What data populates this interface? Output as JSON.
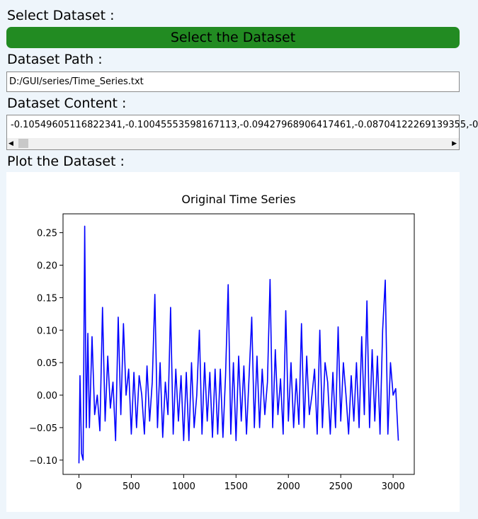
{
  "select_label": "Select Dataset :",
  "button": "Select the Dataset",
  "path_label": "Dataset Path :",
  "path_value": "D:/GUI/series/Time_Series.txt",
  "content_label": "Dataset Content :",
  "content_value": "-0.10549605116822341,-0.10045553598167113,-0.09427968906417461,-0.08704122269139355,-0",
  "plot_label": "Plot the Dataset :",
  "chart_data": {
    "type": "line",
    "title": "Original Time Series",
    "x": [
      0,
      10,
      25,
      40,
      55,
      70,
      85,
      100,
      125,
      150,
      175,
      200,
      225,
      250,
      275,
      300,
      325,
      350,
      375,
      400,
      425,
      450,
      475,
      500,
      525,
      550,
      575,
      600,
      625,
      650,
      675,
      700,
      725,
      750,
      775,
      800,
      825,
      850,
      875,
      900,
      925,
      950,
      975,
      1000,
      1025,
      1050,
      1075,
      1100,
      1125,
      1150,
      1175,
      1200,
      1225,
      1250,
      1275,
      1300,
      1325,
      1350,
      1375,
      1400,
      1425,
      1450,
      1475,
      1500,
      1525,
      1550,
      1575,
      1600,
      1625,
      1650,
      1675,
      1700,
      1725,
      1750,
      1775,
      1800,
      1825,
      1850,
      1875,
      1900,
      1925,
      1950,
      1975,
      2000,
      2025,
      2050,
      2075,
      2100,
      2125,
      2150,
      2175,
      2200,
      2225,
      2250,
      2275,
      2300,
      2325,
      2350,
      2375,
      2400,
      2425,
      2450,
      2475,
      2500,
      2525,
      2550,
      2575,
      2600,
      2625,
      2650,
      2675,
      2700,
      2725,
      2750,
      2775,
      2800,
      2825,
      2850,
      2875,
      2900,
      2925,
      2950,
      2975,
      3000,
      3025,
      3050
    ],
    "series": [
      {
        "color": "#0000ff",
        "values": [
          -0.105,
          0.03,
          -0.09,
          -0.1,
          0.26,
          -0.05,
          0.095,
          -0.05,
          0.09,
          -0.03,
          0.0,
          -0.055,
          0.135,
          -0.04,
          0.06,
          -0.02,
          0.02,
          -0.07,
          0.12,
          -0.03,
          0.11,
          0.0,
          0.04,
          -0.06,
          0.035,
          -0.05,
          0.03,
          0.0,
          -0.06,
          0.045,
          -0.04,
          0.02,
          0.155,
          -0.05,
          0.05,
          -0.065,
          0.02,
          -0.03,
          0.135,
          -0.06,
          0.04,
          -0.04,
          0.03,
          -0.07,
          0.035,
          -0.07,
          0.05,
          -0.05,
          0.0,
          0.1,
          -0.06,
          0.05,
          -0.04,
          0.035,
          -0.065,
          0.04,
          -0.06,
          0.04,
          -0.065,
          0.03,
          0.17,
          -0.06,
          0.05,
          -0.07,
          0.06,
          -0.04,
          0.045,
          -0.06,
          0.03,
          0.12,
          -0.05,
          0.06,
          -0.05,
          0.04,
          -0.03,
          0.02,
          0.178,
          -0.05,
          0.07,
          -0.03,
          0.025,
          -0.06,
          0.13,
          -0.04,
          0.05,
          -0.05,
          0.025,
          -0.045,
          0.11,
          -0.05,
          0.06,
          -0.03,
          0.0,
          0.04,
          -0.06,
          0.1,
          -0.05,
          0.05,
          0.02,
          -0.06,
          0.035,
          -0.05,
          0.105,
          -0.04,
          0.05,
          0.0,
          -0.06,
          0.03,
          -0.04,
          0.05,
          -0.05,
          0.09,
          -0.03,
          0.145,
          -0.05,
          0.07,
          -0.04,
          0.06,
          -0.06,
          0.1,
          0.177,
          -0.06,
          0.05,
          0.0,
          0.01,
          -0.07
        ]
      }
    ],
    "xlim": [
      -152,
      3202
    ],
    "ylim": [
      -0.122,
      0.279
    ],
    "xticks": [
      0,
      500,
      1000,
      1500,
      2000,
      2500,
      3000
    ],
    "yticks": [
      {
        "value": -0.1,
        "label": "−0.10"
      },
      {
        "value": -0.05,
        "label": "−0.05"
      },
      {
        "value": 0,
        "label": "0.00"
      },
      {
        "value": 0.05,
        "label": "0.05"
      },
      {
        "value": 0.1,
        "label": "0.10"
      },
      {
        "value": 0.15,
        "label": "0.15"
      },
      {
        "value": 0.2,
        "label": "0.20"
      },
      {
        "value": 0.25,
        "label": "0.25"
      }
    ]
  }
}
